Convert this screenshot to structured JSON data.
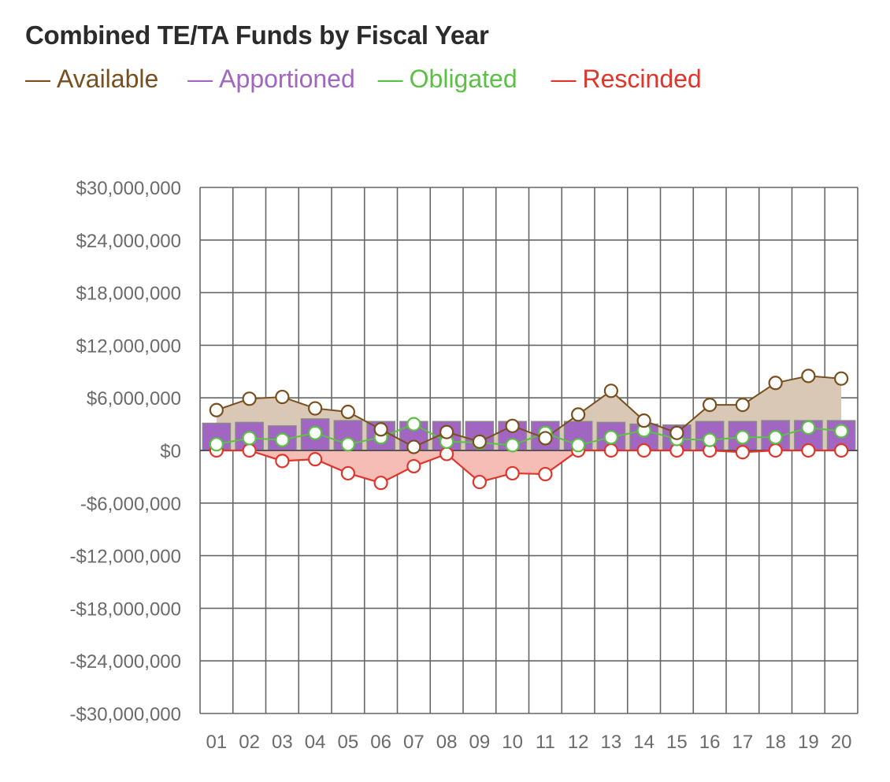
{
  "chart_data": {
    "type": "bar",
    "title": "Combined TE/TA Funds by Fiscal Year",
    "xlabel": "",
    "ylabel": "",
    "categories": [
      "01",
      "02",
      "03",
      "04",
      "05",
      "06",
      "07",
      "08",
      "09",
      "10",
      "11",
      "12",
      "13",
      "14",
      "15",
      "16",
      "17",
      "18",
      "19",
      "20"
    ],
    "yticks": [
      30000000,
      24000000,
      18000000,
      12000000,
      6000000,
      0,
      -6000000,
      -12000000,
      -18000000,
      -24000000,
      -30000000
    ],
    "ytick_labels": [
      "$30,000,000",
      "$24,000,000",
      "$18,000,000",
      "$12,000,000",
      "$6,000,000",
      "$0",
      "-$6,000,000",
      "-$12,000,000",
      "-$18,000,000",
      "-$24,000,000",
      "-$30,000,000"
    ],
    "ylim": [
      -30000000,
      30000000
    ],
    "grid": true,
    "legend_position": "top-left",
    "series": [
      {
        "name": "Available",
        "kind": "area-line",
        "color": "#7a4f1e",
        "fill": "#d8c8b5",
        "values": [
          4600000,
          5900000,
          6100000,
          4800000,
          4400000,
          2400000,
          400000,
          2100000,
          1000000,
          2800000,
          1400000,
          4100000,
          6800000,
          3400000,
          2000000,
          5200000,
          5200000,
          7700000,
          8500000,
          8200000
        ]
      },
      {
        "name": "Apportioned",
        "kind": "bar",
        "color": "#a066c2",
        "stroke": "#888888",
        "values": [
          3100000,
          3200000,
          2800000,
          3600000,
          3400000,
          3300000,
          3300000,
          3300000,
          3300000,
          3300000,
          3300000,
          3300000,
          3200000,
          3000000,
          2900000,
          3300000,
          3300000,
          3400000,
          3400000,
          3400000
        ]
      },
      {
        "name": "Obligated",
        "kind": "line",
        "color": "#5bc046",
        "values": [
          700000,
          1400000,
          1200000,
          2000000,
          700000,
          1500000,
          3000000,
          1000000,
          900000,
          600000,
          2000000,
          600000,
          1500000,
          2300000,
          1300000,
          1200000,
          1500000,
          1500000,
          2600000,
          2200000
        ]
      },
      {
        "name": "Rescinded",
        "kind": "area-line",
        "color": "#e0352b",
        "fill": "#f6bdb6",
        "values": [
          0,
          0,
          -1200000,
          -1000000,
          -2600000,
          -3700000,
          -1800000,
          -400000,
          -3600000,
          -2600000,
          -2700000,
          0,
          0,
          0,
          0,
          0,
          -200000,
          0,
          0,
          0
        ]
      }
    ]
  }
}
